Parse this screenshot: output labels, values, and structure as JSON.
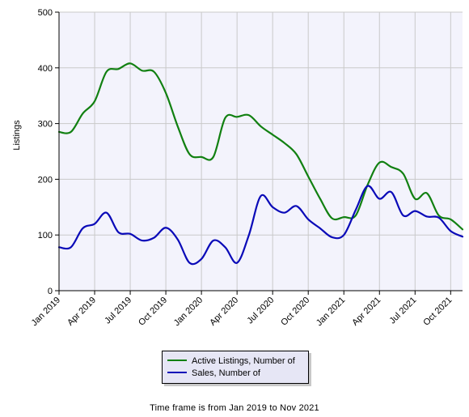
{
  "chart_data": {
    "type": "line",
    "title": "",
    "xlabel": "",
    "ylabel": "Listings",
    "ylim": [
      0,
      500
    ],
    "yticks": [
      0,
      100,
      200,
      300,
      400,
      500
    ],
    "x_tick_labels": [
      "Jan 2019",
      "Apr 2019",
      "Jul 2019",
      "Oct 2019",
      "Jan 2020",
      "Apr 2020",
      "Jul 2020",
      "Oct 2020",
      "Jan 2021",
      "Apr 2021",
      "Jul 2021",
      "Oct 2021"
    ],
    "x": [
      "Jan 2019",
      "Feb 2019",
      "Mar 2019",
      "Apr 2019",
      "May 2019",
      "Jun 2019",
      "Jul 2019",
      "Aug 2019",
      "Sep 2019",
      "Oct 2019",
      "Nov 2019",
      "Dec 2019",
      "Jan 2020",
      "Feb 2020",
      "Mar 2020",
      "Apr 2020",
      "May 2020",
      "Jun 2020",
      "Jul 2020",
      "Aug 2020",
      "Sep 2020",
      "Oct 2020",
      "Nov 2020",
      "Dec 2020",
      "Jan 2021",
      "Feb 2021",
      "Mar 2021",
      "Apr 2021",
      "May 2021",
      "Jun 2021",
      "Jul 2021",
      "Aug 2021",
      "Sep 2021",
      "Oct 2021",
      "Nov 2021"
    ],
    "grid": true,
    "legend_position": "bottom-center",
    "plot_background": "#f3f3fc",
    "series": [
      {
        "name": "Active Listings, Number of",
        "color": "#118011",
        "values": [
          285,
          285,
          318,
          340,
          393,
          398,
          408,
          395,
          393,
          355,
          295,
          245,
          240,
          240,
          310,
          312,
          315,
          295,
          280,
          265,
          245,
          205,
          165,
          130,
          132,
          135,
          190,
          230,
          222,
          210,
          165,
          175,
          135,
          128,
          110
        ]
      },
      {
        "name": "Sales, Number of",
        "color": "#0a0ab8",
        "values": [
          78,
          78,
          112,
          120,
          140,
          105,
          102,
          90,
          95,
          113,
          92,
          50,
          57,
          90,
          78,
          50,
          100,
          170,
          150,
          140,
          152,
          128,
          112,
          96,
          100,
          145,
          188,
          165,
          177,
          135,
          143,
          133,
          131,
          107,
          97
        ]
      }
    ]
  },
  "footnote": "Time frame is from Jan 2019 to Nov 2021"
}
